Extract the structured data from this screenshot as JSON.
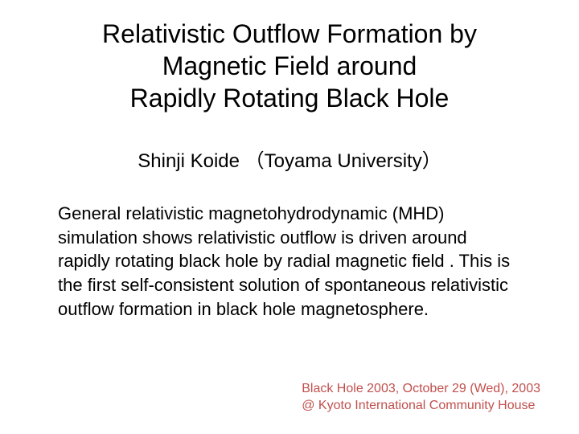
{
  "title": {
    "line1": "Relativistic Outflow Formation by",
    "line2": "Magnetic Field around",
    "line3": "Rapidly Rotating Black Hole"
  },
  "author": "Shinji Koide （Toyama University）",
  "body": "General relativistic magnetohydrodynamic (MHD) simulation shows relativistic outflow is driven around rapidly rotating black hole by radial magnetic field . This is the first self-consistent solution of spontaneous relativistic outflow formation in black hole magnetosphere.",
  "footer": {
    "line1": "Black Hole 2003, October 29 (Wed), 2003",
    "line2": "@ Kyoto International Community House"
  },
  "colors": {
    "background": "#ffffff",
    "text": "#000000",
    "footer_text": "#c0504d"
  },
  "typography": {
    "title_fontsize": 32,
    "author_fontsize": 24,
    "body_fontsize": 22,
    "footer_fontsize": 16,
    "font_family": "Arial"
  }
}
